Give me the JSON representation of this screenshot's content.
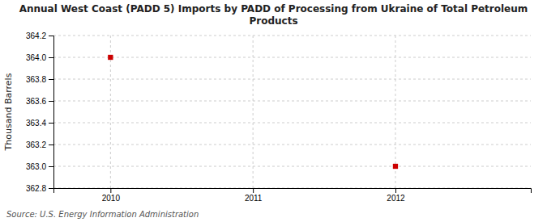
{
  "chart_data": {
    "type": "scatter",
    "title": "Annual West Coast (PADD 5) Imports by PADD of Processing from Ukraine of Total Petroleum\nProducts",
    "ylabel": "Thousand Barrels",
    "source": "Source: U.S. Energy Information Administration",
    "x": [
      2010,
      2012
    ],
    "values": [
      364.0,
      363.0
    ],
    "color": "#cc0000",
    "marker": "square",
    "xlim": [
      2009.6,
      2012.95
    ],
    "ylim": [
      362.8,
      364.2
    ],
    "xticks": [
      2010,
      2011,
      2012
    ],
    "yticks": [
      362.8,
      {
        "value": 363.0,
        "label": "363.0"
      },
      363.2,
      363.4,
      363.6,
      363.8,
      {
        "value": 364.0,
        "label": "364.0"
      },
      364.2
    ],
    "grid": true
  }
}
